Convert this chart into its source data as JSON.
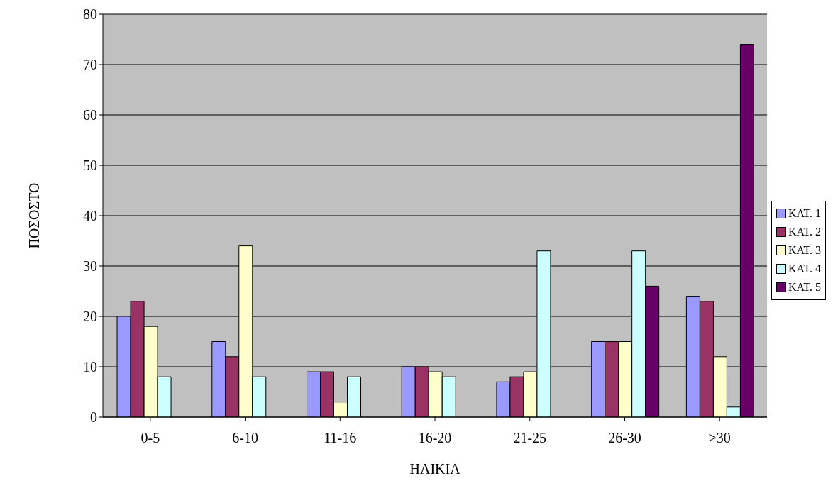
{
  "chart_data": {
    "type": "bar",
    "xlabel": "ΗΛΙΚΙΑ",
    "ylabel": "ΠΟΣΟΣΤΟ",
    "categories": [
      "0-5",
      "6-10",
      "11-16",
      "16-20",
      "21-25",
      "26-30",
      ">30"
    ],
    "series": [
      {
        "name": "ΚΑΤ. 1",
        "color": "#9999ff",
        "values": [
          20,
          15,
          9,
          10,
          7,
          15,
          24
        ]
      },
      {
        "name": "ΚΑΤ. 2",
        "color": "#993366",
        "values": [
          23,
          12,
          9,
          10,
          8,
          15,
          23
        ]
      },
      {
        "name": "ΚΑΤ. 3",
        "color": "#ffffcc",
        "values": [
          18,
          34,
          3,
          9,
          9,
          15,
          12
        ]
      },
      {
        "name": "ΚΑΤ. 4",
        "color": "#ccffff",
        "values": [
          8,
          8,
          8,
          8,
          33,
          33,
          2
        ]
      },
      {
        "name": "ΚΑΤ. 5",
        "color": "#660066",
        "values": [
          null,
          null,
          null,
          null,
          null,
          26,
          74
        ]
      }
    ],
    "ylim": [
      0,
      80
    ],
    "yticks": [
      0,
      10,
      20,
      30,
      40,
      50,
      60,
      70,
      80
    ],
    "grid": "y",
    "legend": "right"
  }
}
